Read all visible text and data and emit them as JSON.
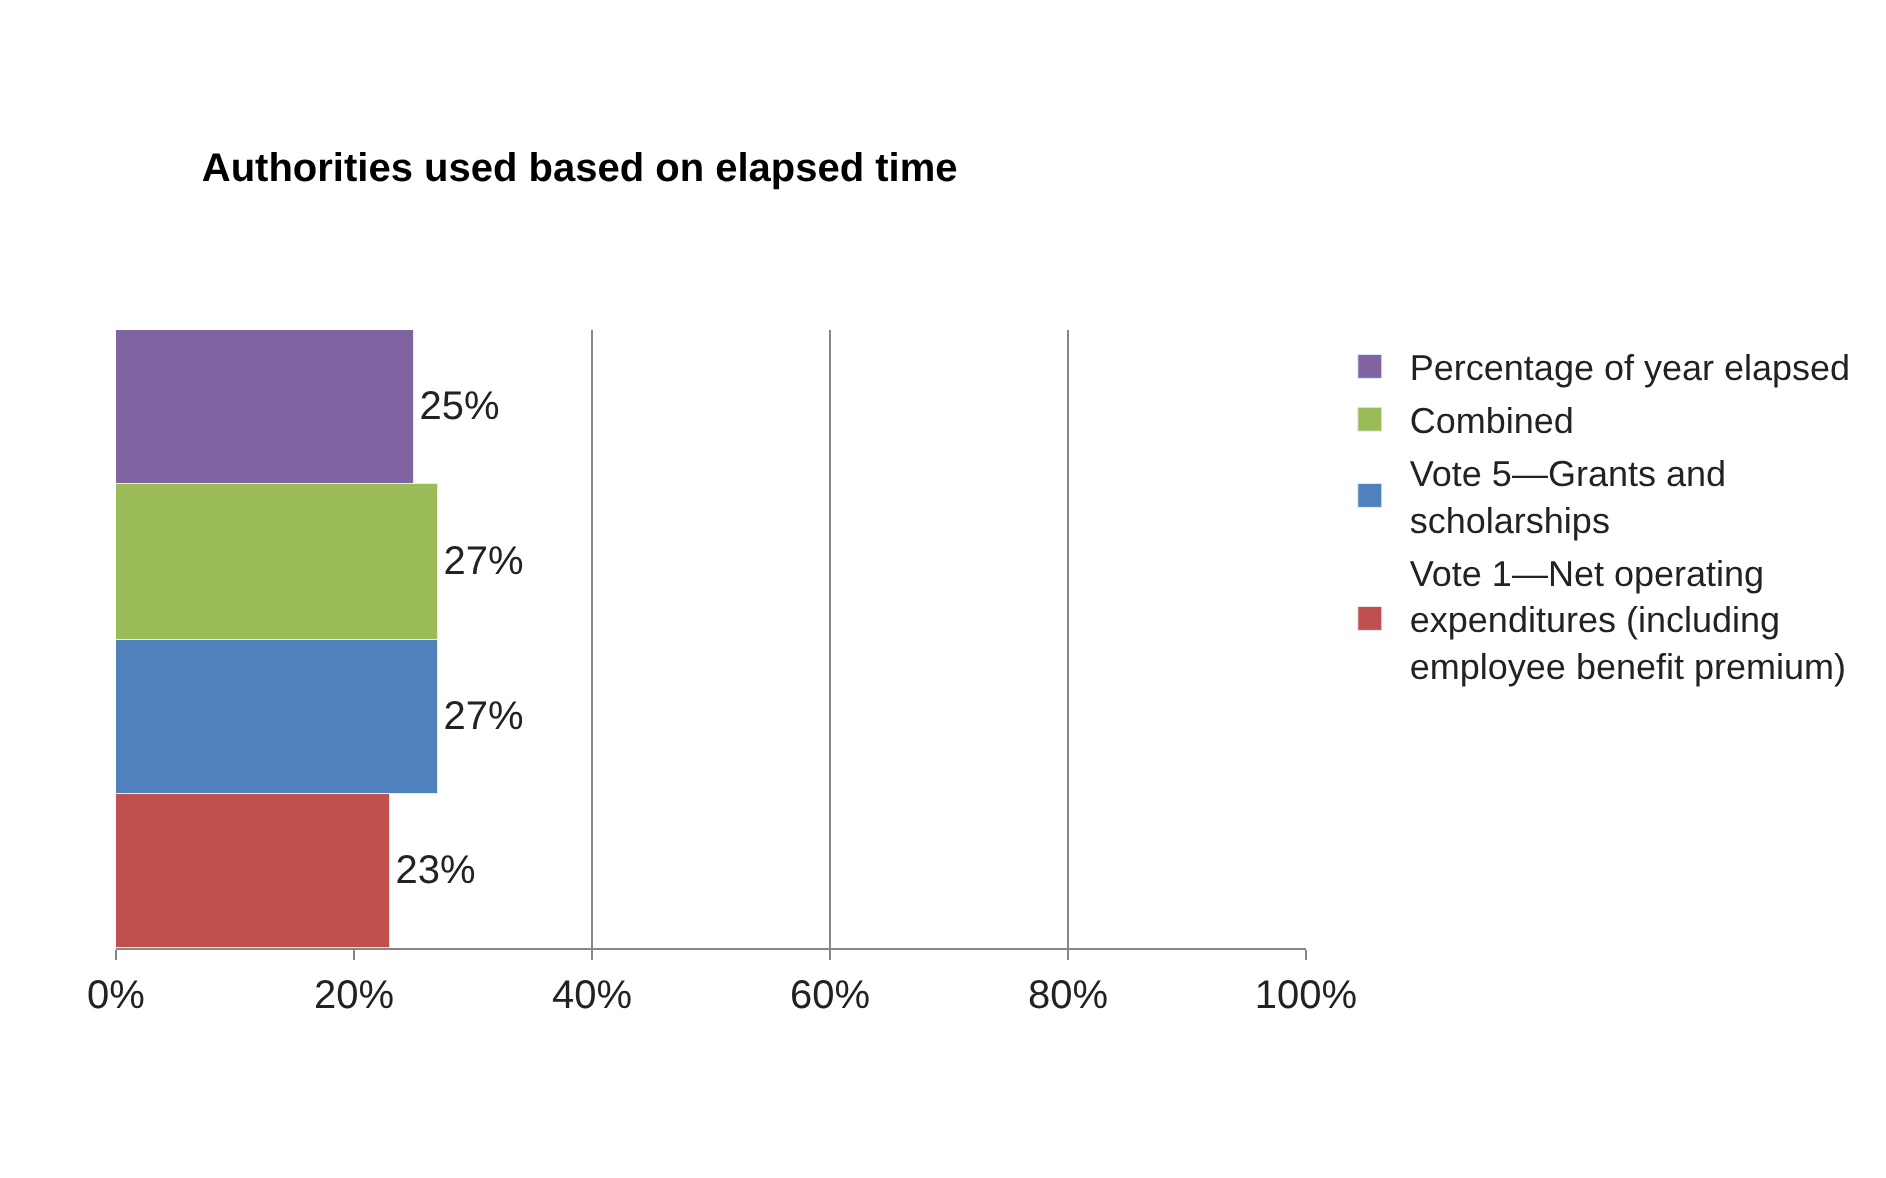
{
  "chart_data": {
    "type": "bar",
    "orientation": "horizontal",
    "title": "Authorities used based on elapsed time",
    "categories": [
      null
    ],
    "series": [
      {
        "name": "Percentage of year elapsed",
        "color": "#8064a2",
        "values": [
          25
        ],
        "value_labels": [
          "25%"
        ]
      },
      {
        "name": "Combined",
        "color": "#9bbb59",
        "values": [
          27
        ],
        "value_labels": [
          "27%"
        ]
      },
      {
        "name": "Vote 5—Grants and scholarships",
        "color": "#4f81bd",
        "values": [
          27
        ],
        "value_labels": [
          "27%"
        ]
      },
      {
        "name": "Vote 1—Net operating expenditures (including employee benefit premium)",
        "color": "#c0504d",
        "values": [
          23
        ],
        "value_labels": [
          "23%"
        ]
      }
    ],
    "xlim": [
      0,
      100
    ],
    "xticks": [
      {
        "value": 0,
        "label": "0%"
      },
      {
        "value": 20,
        "label": "20%"
      },
      {
        "value": 40,
        "label": "40%"
      },
      {
        "value": 60,
        "label": "60%"
      },
      {
        "value": 80,
        "label": "80%"
      },
      {
        "value": 100,
        "label": "100%"
      }
    ],
    "grid": "x",
    "legend": "right"
  }
}
